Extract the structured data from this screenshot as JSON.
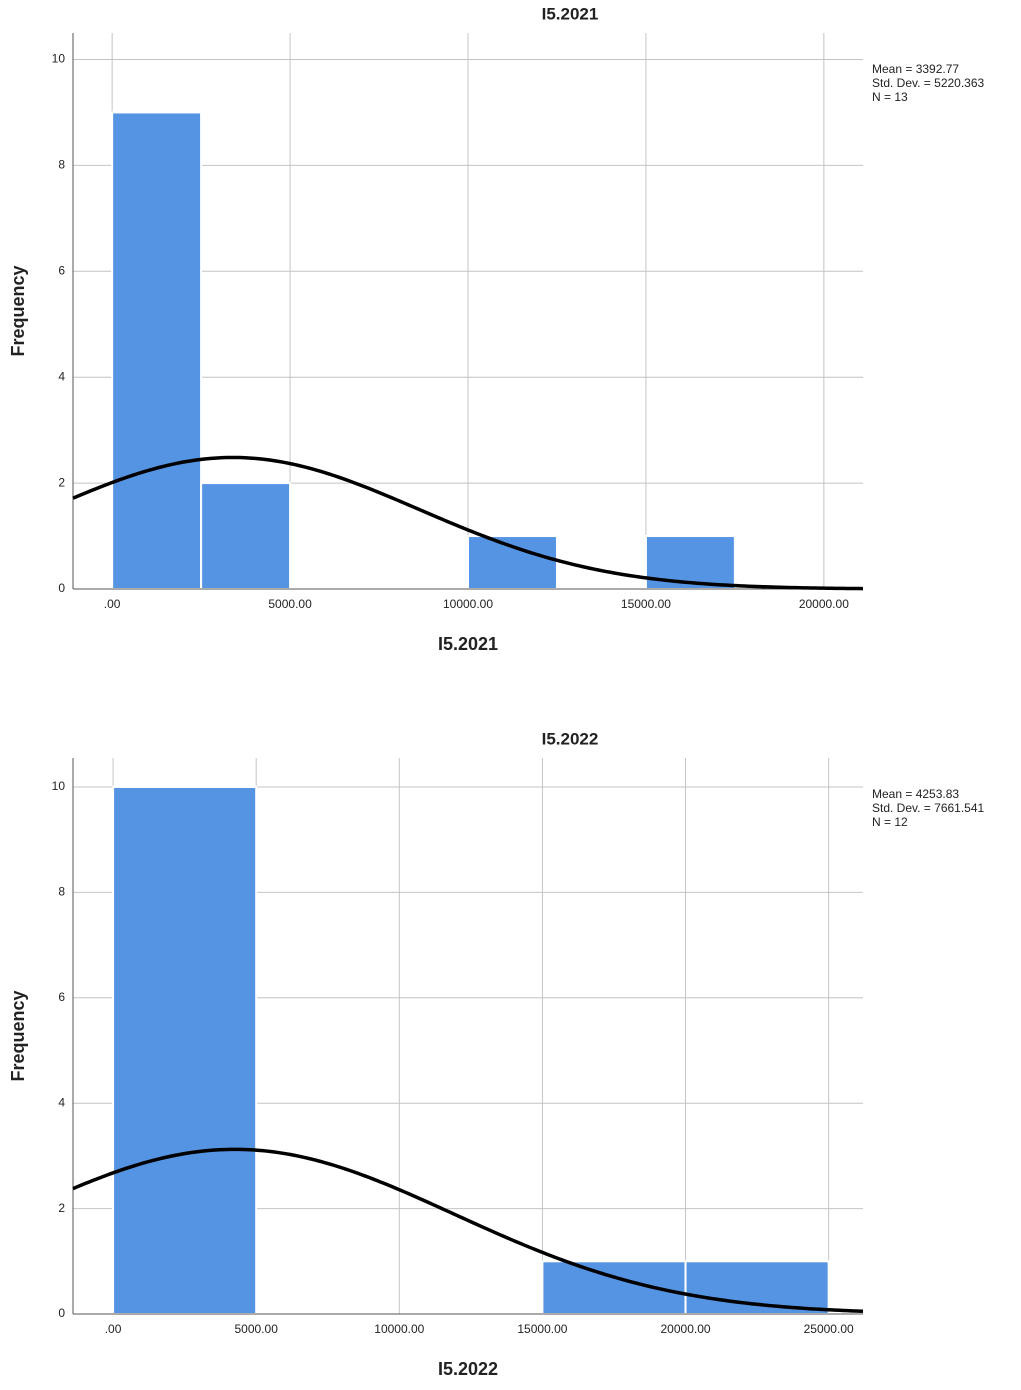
{
  "chart_data": [
    {
      "type": "histogram",
      "title": "I5.2021",
      "x_label": "I5.2021",
      "y_label": "Frequency",
      "bins": [
        0,
        2500,
        5000,
        7500,
        10000,
        12500,
        15000,
        17500
      ],
      "values": [
        9,
        2,
        0,
        0,
        1,
        0,
        1
      ],
      "color": "#5594e3",
      "xlim": [
        -1100,
        21100
      ],
      "ylim": [
        0,
        10.5
      ],
      "xticks": [
        {
          "value": 0,
          "label": ".00"
        },
        {
          "value": 5000,
          "label": "5000.00"
        },
        {
          "value": 10000,
          "label": "10000.00"
        },
        {
          "value": 15000,
          "label": "15000.00"
        },
        {
          "value": 20000,
          "label": "20000.00"
        }
      ],
      "yticks": [
        0,
        2,
        4,
        6,
        8,
        10
      ],
      "grid": true,
      "mean": {
        "value": 3392.77,
        "label": "Mean = 3392.77"
      },
      "std_dev": {
        "value": 5220.363,
        "label": "Std. Dev. = 5220.363"
      },
      "n": {
        "value": 13,
        "label": "N = 13"
      }
    },
    {
      "type": "histogram",
      "title": "I5.2022",
      "x_label": "I5.2022",
      "y_label": "Frequency",
      "bins": [
        0,
        5000,
        10000,
        15000,
        20000,
        25000
      ],
      "values": [
        10,
        0,
        0,
        1,
        1
      ],
      "color": "#5594e3",
      "xlim": [
        -1400,
        26200
      ],
      "ylim": [
        0,
        10.55
      ],
      "xticks": [
        {
          "value": 0,
          "label": ".00"
        },
        {
          "value": 5000,
          "label": "5000.00"
        },
        {
          "value": 10000,
          "label": "10000.00"
        },
        {
          "value": 15000,
          "label": "15000.00"
        },
        {
          "value": 20000,
          "label": "20000.00"
        },
        {
          "value": 25000,
          "label": "25000.00"
        }
      ],
      "yticks": [
        0,
        2,
        4,
        6,
        8,
        10
      ],
      "grid": true,
      "mean": {
        "value": 4253.83,
        "label": "Mean = 4253.83"
      },
      "std_dev": {
        "value": 7661.541,
        "label": "Std. Dev. = 7661.541"
      },
      "n": {
        "value": 12,
        "label": "N = 12"
      }
    }
  ]
}
